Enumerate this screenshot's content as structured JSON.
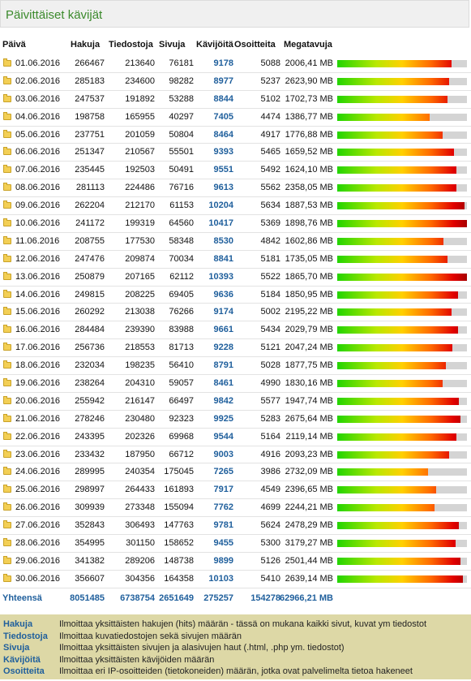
{
  "title": "Päivittäiset kävijät",
  "headers": {
    "day": "Päivä",
    "hits": "Hakuja",
    "files": "Tiedostoja",
    "pages": "Sivuja",
    "visits": "Kävijöitä",
    "sites": "Osoitteita",
    "mb": "Megatavuja"
  },
  "rows": [
    {
      "day": "01.06.2016",
      "hits": "266467",
      "files": "213640",
      "pages": "76181",
      "visits": "9178",
      "sites": "5088",
      "mb": "2006,41 MB",
      "bar": 0.88
    },
    {
      "day": "02.06.2016",
      "hits": "285183",
      "files": "234600",
      "pages": "98282",
      "visits": "8977",
      "sites": "5237",
      "mb": "2623,90 MB",
      "bar": 0.86
    },
    {
      "day": "03.06.2016",
      "hits": "247537",
      "files": "191892",
      "pages": "53288",
      "visits": "8844",
      "sites": "5102",
      "mb": "1702,73 MB",
      "bar": 0.85
    },
    {
      "day": "04.06.2016",
      "hits": "198758",
      "files": "165955",
      "pages": "40297",
      "visits": "7405",
      "sites": "4474",
      "mb": "1386,77 MB",
      "bar": 0.71
    },
    {
      "day": "05.06.2016",
      "hits": "237751",
      "files": "201059",
      "pages": "50804",
      "visits": "8464",
      "sites": "4917",
      "mb": "1776,88 MB",
      "bar": 0.81
    },
    {
      "day": "06.06.2016",
      "hits": "251347",
      "files": "210567",
      "pages": "55501",
      "visits": "9393",
      "sites": "5465",
      "mb": "1659,52 MB",
      "bar": 0.9
    },
    {
      "day": "07.06.2016",
      "hits": "235445",
      "files": "192503",
      "pages": "50491",
      "visits": "9551",
      "sites": "5492",
      "mb": "1624,10 MB",
      "bar": 0.92
    },
    {
      "day": "08.06.2016",
      "hits": "281113",
      "files": "224486",
      "pages": "76716",
      "visits": "9613",
      "sites": "5562",
      "mb": "2358,05 MB",
      "bar": 0.92
    },
    {
      "day": "09.06.2016",
      "hits": "262204",
      "files": "212170",
      "pages": "61153",
      "visits": "10204",
      "sites": "5634",
      "mb": "1887,53 MB",
      "bar": 0.98
    },
    {
      "day": "10.06.2016",
      "hits": "241172",
      "files": "199319",
      "pages": "64560",
      "visits": "10417",
      "sites": "5369",
      "mb": "1898,76 MB",
      "bar": 1.0
    },
    {
      "day": "11.06.2016",
      "hits": "208755",
      "files": "177530",
      "pages": "58348",
      "visits": "8530",
      "sites": "4842",
      "mb": "1602,86 MB",
      "bar": 0.82
    },
    {
      "day": "12.06.2016",
      "hits": "247476",
      "files": "209874",
      "pages": "70034",
      "visits": "8841",
      "sites": "5181",
      "mb": "1735,05 MB",
      "bar": 0.85
    },
    {
      "day": "13.06.2016",
      "hits": "250879",
      "files": "207165",
      "pages": "62112",
      "visits": "10393",
      "sites": "5522",
      "mb": "1865,70 MB",
      "bar": 1.0
    },
    {
      "day": "14.06.2016",
      "hits": "249815",
      "files": "208225",
      "pages": "69405",
      "visits": "9636",
      "sites": "5184",
      "mb": "1850,95 MB",
      "bar": 0.93
    },
    {
      "day": "15.06.2016",
      "hits": "260292",
      "files": "213038",
      "pages": "76266",
      "visits": "9174",
      "sites": "5002",
      "mb": "2195,22 MB",
      "bar": 0.88
    },
    {
      "day": "16.06.2016",
      "hits": "284484",
      "files": "239390",
      "pages": "83988",
      "visits": "9661",
      "sites": "5434",
      "mb": "2029,79 MB",
      "bar": 0.93
    },
    {
      "day": "17.06.2016",
      "hits": "256736",
      "files": "218553",
      "pages": "81713",
      "visits": "9228",
      "sites": "5121",
      "mb": "2047,24 MB",
      "bar": 0.89
    },
    {
      "day": "18.06.2016",
      "hits": "232034",
      "files": "198235",
      "pages": "56410",
      "visits": "8791",
      "sites": "5028",
      "mb": "1877,75 MB",
      "bar": 0.84
    },
    {
      "day": "19.06.2016",
      "hits": "238264",
      "files": "204310",
      "pages": "59057",
      "visits": "8461",
      "sites": "4990",
      "mb": "1830,16 MB",
      "bar": 0.81
    },
    {
      "day": "20.06.2016",
      "hits": "255942",
      "files": "216147",
      "pages": "66497",
      "visits": "9842",
      "sites": "5577",
      "mb": "1947,74 MB",
      "bar": 0.94
    },
    {
      "day": "21.06.2016",
      "hits": "278246",
      "files": "230480",
      "pages": "92323",
      "visits": "9925",
      "sites": "5283",
      "mb": "2675,64 MB",
      "bar": 0.95
    },
    {
      "day": "22.06.2016",
      "hits": "243395",
      "files": "202326",
      "pages": "69968",
      "visits": "9544",
      "sites": "5164",
      "mb": "2119,14 MB",
      "bar": 0.92
    },
    {
      "day": "23.06.2016",
      "hits": "233432",
      "files": "187950",
      "pages": "66712",
      "visits": "9003",
      "sites": "4916",
      "mb": "2093,23 MB",
      "bar": 0.86
    },
    {
      "day": "24.06.2016",
      "hits": "289995",
      "files": "240354",
      "pages": "175045",
      "visits": "7265",
      "sites": "3986",
      "mb": "2732,09 MB",
      "bar": 0.7
    },
    {
      "day": "25.06.2016",
      "hits": "298997",
      "files": "264433",
      "pages": "161893",
      "visits": "7917",
      "sites": "4549",
      "mb": "2396,65 MB",
      "bar": 0.76
    },
    {
      "day": "26.06.2016",
      "hits": "309939",
      "files": "273348",
      "pages": "155094",
      "visits": "7762",
      "sites": "4699",
      "mb": "2244,21 MB",
      "bar": 0.75
    },
    {
      "day": "27.06.2016",
      "hits": "352843",
      "files": "306493",
      "pages": "147763",
      "visits": "9781",
      "sites": "5624",
      "mb": "2478,29 MB",
      "bar": 0.94
    },
    {
      "day": "28.06.2016",
      "hits": "354995",
      "files": "301150",
      "pages": "158652",
      "visits": "9455",
      "sites": "5300",
      "mb": "3179,27 MB",
      "bar": 0.91
    },
    {
      "day": "29.06.2016",
      "hits": "341382",
      "files": "289206",
      "pages": "148738",
      "visits": "9899",
      "sites": "5126",
      "mb": "2501,44 MB",
      "bar": 0.95
    },
    {
      "day": "30.06.2016",
      "hits": "356607",
      "files": "304356",
      "pages": "164358",
      "visits": "10103",
      "sites": "5410",
      "mb": "2639,14 MB",
      "bar": 0.97
    }
  ],
  "totals": {
    "label": "Yhteensä",
    "hits": "8051485",
    "files": "6738754",
    "pages": "2651649",
    "visits": "275257",
    "sites": "154278",
    "mb": "62966,21 MB"
  },
  "legend": [
    {
      "term": "Hakuja",
      "def": "Ilmoittaa yksittäisten hakujen (hits) määrän - tässä on mukana kaikki sivut, kuvat ym tiedostot"
    },
    {
      "term": "Tiedostoja",
      "def": "Ilmoittaa kuvatiedostojen sekä sivujen määrän"
    },
    {
      "term": "Sivuja",
      "def": "Ilmoittaa yksittäisten sivujen ja alasivujen haut (.html, .php ym. tiedostot)"
    },
    {
      "term": "Kävijöitä",
      "def": "Ilmoittaa yksittäisten kävijöiden määrän"
    },
    {
      "term": "Osoitteita",
      "def": "Ilmoittaa eri IP-osoitteiden (tietokoneiden) määrän, jotka ovat palvelimelta tietoa hakeneet"
    }
  ],
  "colors": {
    "title": "#3b8a2c",
    "link": "#1f5f9c",
    "legend_bg": "#ddd8a6",
    "bar_track": "#d4d4d4"
  }
}
